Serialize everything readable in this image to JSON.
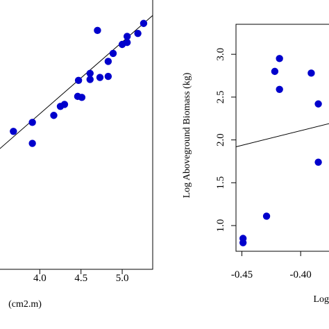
{
  "chart_data": [
    {
      "type": "scatter",
      "xlabel": "(cm2.m)",
      "ylabel": "",
      "xlim": [
        3.45,
        5.37
      ],
      "ylim": [
        0.5,
        3.25
      ],
      "x_ticks": [
        {
          "value": 4.0,
          "label": "4.0"
        },
        {
          "value": 4.5,
          "label": "4.5"
        },
        {
          "value": 5.0,
          "label": "5.0"
        }
      ],
      "point_color": "#0000cc",
      "points": [
        {
          "x": 3.68,
          "y": 1.88
        },
        {
          "x": 3.91,
          "y": 1.97
        },
        {
          "x": 3.91,
          "y": 1.76
        },
        {
          "x": 4.17,
          "y": 2.04
        },
        {
          "x": 4.25,
          "y": 2.13
        },
        {
          "x": 4.3,
          "y": 2.15
        },
        {
          "x": 4.46,
          "y": 2.23
        },
        {
          "x": 4.51,
          "y": 2.22
        },
        {
          "x": 4.47,
          "y": 2.39
        },
        {
          "x": 4.61,
          "y": 2.46
        },
        {
          "x": 4.61,
          "y": 2.4
        },
        {
          "x": 4.7,
          "y": 2.89
        },
        {
          "x": 4.73,
          "y": 2.42
        },
        {
          "x": 4.83,
          "y": 2.43
        },
        {
          "x": 4.83,
          "y": 2.58
        },
        {
          "x": 4.89,
          "y": 2.66
        },
        {
          "x": 5.0,
          "y": 2.75
        },
        {
          "x": 5.06,
          "y": 2.83
        },
        {
          "x": 5.06,
          "y": 2.77
        },
        {
          "x": 5.19,
          "y": 2.86
        },
        {
          "x": 5.26,
          "y": 2.96
        }
      ],
      "fit_line": {
        "x": [
          3.45,
          5.37
        ],
        "y": [
          1.66,
          3.04
        ]
      }
    },
    {
      "type": "scatter",
      "xlabel": "Log",
      "ylabel": "Log Aboveground Biomass (kg)",
      "xlim": [
        -0.455,
        -0.37
      ],
      "ylim": [
        0.7,
        3.35
      ],
      "x_ticks": [
        {
          "value": -0.45,
          "label": "-0.45"
        },
        {
          "value": -0.4,
          "label": "-0.40"
        }
      ],
      "y_ticks": [
        {
          "value": 1.0,
          "label": "1.0"
        },
        {
          "value": 1.5,
          "label": "1.5"
        },
        {
          "value": 2.0,
          "label": "2.0"
        },
        {
          "value": 2.5,
          "label": "2.5"
        },
        {
          "value": 3.0,
          "label": "3.0"
        }
      ],
      "point_color": "#0000cc",
      "points": [
        {
          "x": -0.449,
          "y": 0.85
        },
        {
          "x": -0.449,
          "y": 0.8
        },
        {
          "x": -0.429,
          "y": 1.11
        },
        {
          "x": -0.422,
          "y": 2.8
        },
        {
          "x": -0.418,
          "y": 2.95
        },
        {
          "x": -0.418,
          "y": 2.59
        },
        {
          "x": -0.391,
          "y": 2.78
        },
        {
          "x": -0.385,
          "y": 2.42
        },
        {
          "x": -0.385,
          "y": 1.74
        }
      ],
      "fit_line": {
        "x": [
          -0.455,
          -0.37
        ],
        "y": [
          1.92,
          2.21
        ]
      }
    }
  ]
}
